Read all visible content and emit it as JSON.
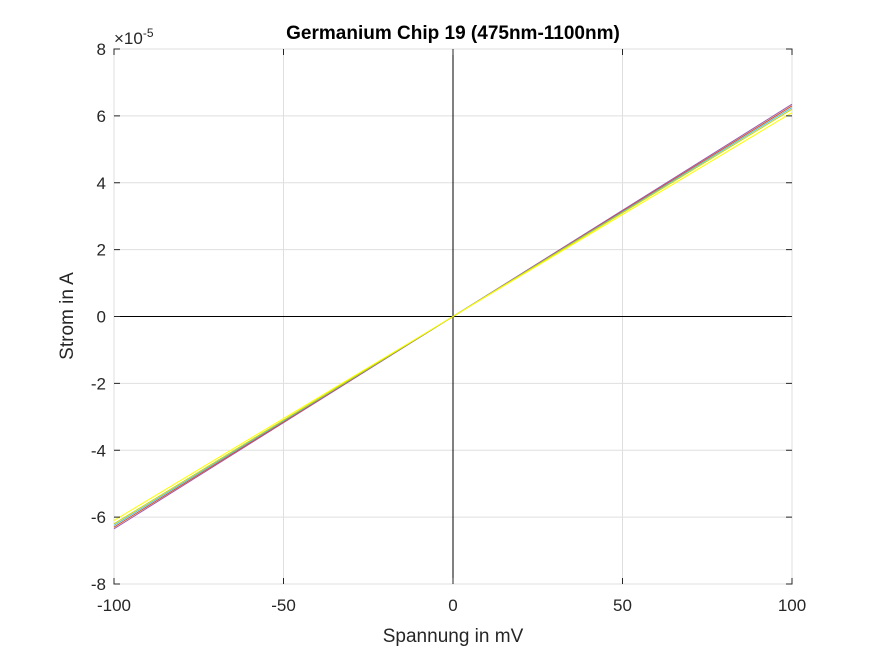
{
  "chart_data": {
    "type": "line",
    "title": "Germanium Chip 19 (475nm-1100nm)",
    "xlabel": "Spannung in mV",
    "ylabel": "Strom in A",
    "y_exponent_prefix": "×10",
    "y_exponent": "-5",
    "xlim": [
      -100,
      100
    ],
    "ylim": [
      -8,
      8
    ],
    "xticks": [
      -100,
      -50,
      0,
      50,
      100
    ],
    "yticks": [
      -8,
      -6,
      -4,
      -2,
      0,
      2,
      4,
      6,
      8
    ],
    "xtick_labels": [
      "-100",
      "-50",
      "0",
      "50",
      "100"
    ],
    "ytick_labels": [
      "-8",
      "-6",
      "-4",
      "-2",
      "0",
      "2",
      "4",
      "6",
      "8"
    ],
    "grid": true,
    "zero_lines": true,
    "series": [
      {
        "color": "#9b59b6",
        "x": [
          -100,
          100
        ],
        "y": [
          -6.35,
          6.35
        ]
      },
      {
        "color": "#d95319",
        "x": [
          -100,
          100
        ],
        "y": [
          -6.3,
          6.3
        ]
      },
      {
        "color": "#4dbeee",
        "x": [
          -100,
          100
        ],
        "y": [
          -6.25,
          6.25
        ]
      },
      {
        "color": "#c8d600",
        "x": [
          -100,
          100
        ],
        "y": [
          -6.2,
          6.2
        ]
      },
      {
        "color": "#ffff00",
        "x": [
          -100,
          100
        ],
        "y": [
          -6.1,
          6.1
        ]
      }
    ]
  }
}
